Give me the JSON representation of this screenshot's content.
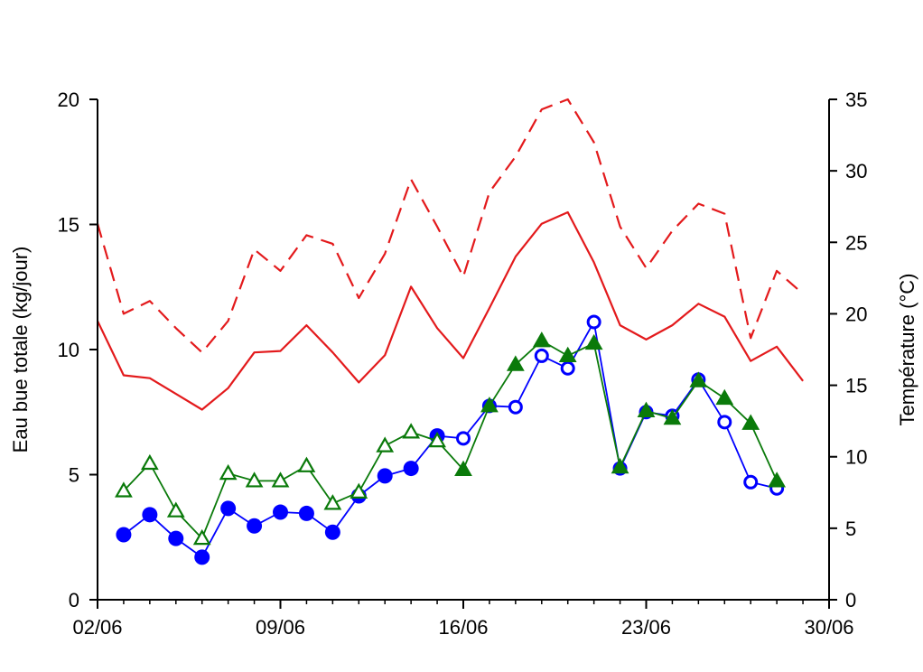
{
  "chart_data": {
    "type": "line",
    "xlabel": "",
    "ylabel": "Eau bue totale (kg/jour)",
    "y2label": "Température (°C)",
    "x_ticks": [
      "02/06",
      "09/06",
      "16/06",
      "23/06",
      "30/06"
    ],
    "x_tick_days": [
      2,
      9,
      16,
      23,
      30
    ],
    "xlim": [
      2,
      30
    ],
    "ylim": [
      0,
      20
    ],
    "y_ticks": [
      0,
      5,
      10,
      15,
      20
    ],
    "y2lim": [
      0,
      35
    ],
    "y2_ticks": [
      0,
      5,
      10,
      15,
      20,
      25,
      30,
      35
    ],
    "grid": false,
    "legend": "none",
    "series": [
      {
        "axis": "right",
        "color": "#e31a1c",
        "dash": "dashed",
        "marker": "none",
        "x": [
          2,
          3,
          4,
          5,
          6,
          7,
          8,
          9,
          10,
          11,
          12,
          13,
          14,
          15,
          16,
          17,
          18,
          19,
          20,
          21,
          22,
          23,
          24,
          25,
          26,
          27,
          28,
          29
        ],
        "values": [
          26.3,
          20.0,
          20.9,
          19.0,
          17.3,
          19.5,
          24.5,
          23.0,
          25.5,
          24.9,
          21.1,
          24.2,
          29.4,
          26.1,
          22.6,
          28.5,
          31.0,
          34.3,
          35.0,
          32.0,
          26.1,
          23.2,
          25.8,
          27.7,
          27.0,
          18.3,
          23.0,
          21.4
        ]
      },
      {
        "axis": "right",
        "color": "#e31a1c",
        "dash": "solid",
        "marker": "none",
        "x": [
          2,
          3,
          4,
          5,
          6,
          7,
          8,
          9,
          10,
          11,
          12,
          13,
          14,
          15,
          16,
          17,
          18,
          19,
          20,
          21,
          22,
          23,
          24,
          25,
          26,
          27,
          28,
          29
        ],
        "values": [
          19.5,
          15.7,
          15.5,
          14.4,
          13.3,
          14.8,
          17.3,
          17.4,
          19.2,
          17.3,
          15.2,
          17.1,
          21.9,
          19.0,
          16.9,
          20.4,
          24.0,
          26.3,
          27.1,
          23.6,
          19.2,
          18.2,
          19.2,
          20.7,
          19.8,
          16.7,
          17.7,
          15.3
        ]
      },
      {
        "axis": "left",
        "color": "#0000ff",
        "dash": "solid",
        "marker": "circle",
        "x": [
          3,
          4,
          5,
          6,
          7,
          8,
          9,
          10,
          11,
          12,
          13,
          14,
          15,
          16,
          17,
          18,
          19,
          20,
          21,
          22,
          23,
          24,
          25,
          26,
          27,
          28
        ],
        "values": [
          2.6,
          3.4,
          2.45,
          1.7,
          3.65,
          2.95,
          3.5,
          3.45,
          2.7,
          4.15,
          4.95,
          5.25,
          6.55,
          6.45,
          7.75,
          7.7,
          9.75,
          9.25,
          11.1,
          5.25,
          7.5,
          7.35,
          8.8,
          7.1,
          4.7,
          4.45
        ],
        "filled": [
          true,
          true,
          true,
          true,
          true,
          true,
          true,
          true,
          true,
          true,
          true,
          true,
          true,
          false,
          false,
          false,
          false,
          false,
          false,
          false,
          false,
          false,
          false,
          false,
          false,
          false
        ]
      },
      {
        "axis": "left",
        "color": "#0a7a0a",
        "dash": "solid",
        "marker": "triangle",
        "x": [
          3,
          4,
          5,
          6,
          7,
          8,
          9,
          10,
          11,
          12,
          13,
          14,
          15,
          16,
          17,
          18,
          19,
          20,
          21,
          22,
          23,
          24,
          25,
          26,
          27,
          28
        ],
        "values": [
          4.35,
          5.45,
          3.55,
          2.45,
          5.05,
          4.75,
          4.75,
          5.35,
          3.85,
          4.3,
          6.15,
          6.7,
          6.35,
          5.2,
          7.75,
          9.4,
          10.35,
          9.75,
          10.25,
          5.3,
          7.55,
          7.25,
          8.75,
          8.05,
          7.05,
          4.75
        ],
        "filled": [
          false,
          false,
          false,
          false,
          false,
          false,
          false,
          false,
          false,
          false,
          false,
          false,
          false,
          true,
          true,
          true,
          true,
          true,
          true,
          true,
          true,
          true,
          true,
          true,
          true,
          true
        ]
      }
    ]
  }
}
